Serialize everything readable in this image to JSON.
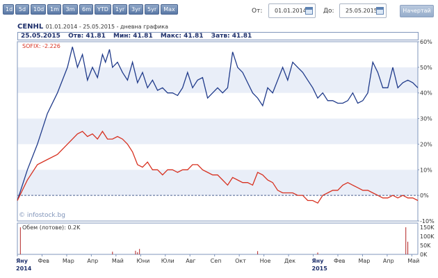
{
  "toolbar": {
    "range_buttons": [
      "1d",
      "5d",
      "10d",
      "1m",
      "3m",
      "6m",
      "YTD",
      "1yr",
      "3yr",
      "5yr",
      "Max"
    ],
    "from_label": "От:",
    "from_value": "01.01.2014",
    "to_label": "До:",
    "to_value": "25.05.2015",
    "apply_label": "Начертай"
  },
  "header": {
    "ticker": "CENHL",
    "subtitle": "01.01.2014 - 25.05.2015 - дневна графика"
  },
  "info": {
    "date": "25.05.2015",
    "open_label": "Отв:",
    "open": "41.81",
    "low_label": "Мин:",
    "low": "41.81",
    "high_label": "Макс:",
    "high": "41.81",
    "close_label": "Затв:",
    "close": "41.81"
  },
  "legend": {
    "index_label": "SOFIX: -2.226"
  },
  "watermark": "© infostock.bg",
  "volume": {
    "label": "Обем (лотове): 0.2K"
  },
  "colors": {
    "stock": "#1f3a8a",
    "index": "#d7301f",
    "volume": "#b22222",
    "band": "#e9eef8"
  },
  "chart_data": [
    {
      "type": "line",
      "x_range": [
        "2014-01-01",
        "2015-05-25"
      ],
      "y_unit": "%",
      "ylim": [
        -10,
        60
      ],
      "yticks": [
        "60%",
        "50%",
        "40%",
        "30%",
        "20%",
        "10%",
        "0%",
        "-10%"
      ],
      "xticks": [
        "Яну",
        "Фев",
        "Мар",
        "Апр",
        "Май",
        "Юни",
        "Юли",
        "Авг",
        "Сеп",
        "Окт",
        "Ное",
        "Дек",
        "Яну",
        "Фев",
        "Мар",
        "Апр",
        "Май"
      ],
      "year_labels": [
        "2014",
        "2015"
      ],
      "series": [
        {
          "name": "CENHL",
          "points": [
            [
              0,
              -2
            ],
            [
              10,
              10
            ],
            [
              20,
              20
            ],
            [
              30,
              32
            ],
            [
              40,
              40
            ],
            [
              50,
              50
            ],
            [
              55,
              58
            ],
            [
              60,
              50
            ],
            [
              65,
              55
            ],
            [
              70,
              45
            ],
            [
              75,
              50
            ],
            [
              80,
              46
            ],
            [
              85,
              55
            ],
            [
              88,
              52
            ],
            [
              92,
              57
            ],
            [
              95,
              50
            ],
            [
              100,
              52
            ],
            [
              105,
              48
            ],
            [
              110,
              45
            ],
            [
              115,
              52
            ],
            [
              120,
              44
            ],
            [
              125,
              48
            ],
            [
              130,
              42
            ],
            [
              135,
              45
            ],
            [
              140,
              41
            ],
            [
              145,
              42
            ],
            [
              150,
              40
            ],
            [
              155,
              40
            ],
            [
              160,
              39
            ],
            [
              165,
              42
            ],
            [
              170,
              48
            ],
            [
              175,
              42
            ],
            [
              180,
              45
            ],
            [
              185,
              46
            ],
            [
              190,
              38
            ],
            [
              195,
              40
            ],
            [
              200,
              42
            ],
            [
              205,
              40
            ],
            [
              210,
              42
            ],
            [
              215,
              56
            ],
            [
              220,
              50
            ],
            [
              225,
              48
            ],
            [
              230,
              44
            ],
            [
              235,
              40
            ],
            [
              240,
              38
            ],
            [
              245,
              35
            ],
            [
              250,
              42
            ],
            [
              255,
              40
            ],
            [
              260,
              45
            ],
            [
              265,
              50
            ],
            [
              270,
              45
            ],
            [
              275,
              52
            ],
            [
              280,
              50
            ],
            [
              285,
              48
            ],
            [
              290,
              45
            ],
            [
              295,
              42
            ],
            [
              300,
              38
            ],
            [
              305,
              40
            ],
            [
              310,
              37
            ],
            [
              315,
              37
            ],
            [
              320,
              36
            ],
            [
              325,
              36
            ],
            [
              330,
              37
            ],
            [
              335,
              40
            ],
            [
              340,
              36
            ],
            [
              345,
              37
            ],
            [
              350,
              40
            ],
            [
              355,
              52
            ],
            [
              360,
              48
            ],
            [
              365,
              42
            ],
            [
              370,
              42
            ],
            [
              375,
              50
            ],
            [
              380,
              42
            ],
            [
              385,
              44
            ],
            [
              390,
              45
            ],
            [
              395,
              44
            ],
            [
              400,
              42
            ]
          ]
        },
        {
          "name": "SOFIX",
          "points": [
            [
              0,
              -2
            ],
            [
              10,
              6
            ],
            [
              20,
              12
            ],
            [
              30,
              14
            ],
            [
              40,
              16
            ],
            [
              50,
              20
            ],
            [
              55,
              22
            ],
            [
              60,
              24
            ],
            [
              65,
              25
            ],
            [
              70,
              23
            ],
            [
              75,
              24
            ],
            [
              80,
              22
            ],
            [
              85,
              25
            ],
            [
              90,
              22
            ],
            [
              95,
              22
            ],
            [
              100,
              23
            ],
            [
              105,
              22
            ],
            [
              110,
              20
            ],
            [
              115,
              17
            ],
            [
              120,
              12
            ],
            [
              125,
              11
            ],
            [
              130,
              13
            ],
            [
              135,
              10
            ],
            [
              140,
              10
            ],
            [
              145,
              8
            ],
            [
              150,
              10
            ],
            [
              155,
              10
            ],
            [
              160,
              9
            ],
            [
              165,
              10
            ],
            [
              170,
              10
            ],
            [
              175,
              12
            ],
            [
              180,
              12
            ],
            [
              185,
              10
            ],
            [
              190,
              9
            ],
            [
              195,
              8
            ],
            [
              200,
              8
            ],
            [
              205,
              6
            ],
            [
              210,
              4
            ],
            [
              215,
              7
            ],
            [
              220,
              6
            ],
            [
              225,
              5
            ],
            [
              230,
              5
            ],
            [
              235,
              4
            ],
            [
              240,
              9
            ],
            [
              245,
              8
            ],
            [
              250,
              6
            ],
            [
              255,
              5
            ],
            [
              260,
              2
            ],
            [
              265,
              1
            ],
            [
              270,
              1
            ],
            [
              275,
              1
            ],
            [
              280,
              0
            ],
            [
              285,
              0
            ],
            [
              290,
              -2
            ],
            [
              295,
              -2
            ],
            [
              300,
              -3
            ],
            [
              305,
              0
            ],
            [
              310,
              1
            ],
            [
              315,
              2
            ],
            [
              320,
              2
            ],
            [
              325,
              4
            ],
            [
              330,
              5
            ],
            [
              335,
              4
            ],
            [
              340,
              3
            ],
            [
              345,
              2
            ],
            [
              350,
              2
            ],
            [
              355,
              1
            ],
            [
              360,
              0
            ],
            [
              365,
              -1
            ],
            [
              370,
              -1
            ],
            [
              375,
              0
            ],
            [
              380,
              -1
            ],
            [
              385,
              0
            ],
            [
              390,
              -1
            ],
            [
              395,
              -1
            ],
            [
              400,
              -2
            ]
          ]
        }
      ]
    },
    {
      "type": "bar",
      "name": "volume",
      "ylim": [
        0,
        150
      ],
      "y_unit": "K",
      "yticks": [
        "150K",
        "100K",
        "50K",
        "0K"
      ],
      "bars": [
        [
          3,
          150
        ],
        [
          95,
          15
        ],
        [
          118,
          20
        ],
        [
          120,
          12
        ],
        [
          122,
          30
        ],
        [
          240,
          18
        ],
        [
          300,
          10
        ],
        [
          388,
          160
        ],
        [
          390,
          70
        ]
      ]
    }
  ]
}
